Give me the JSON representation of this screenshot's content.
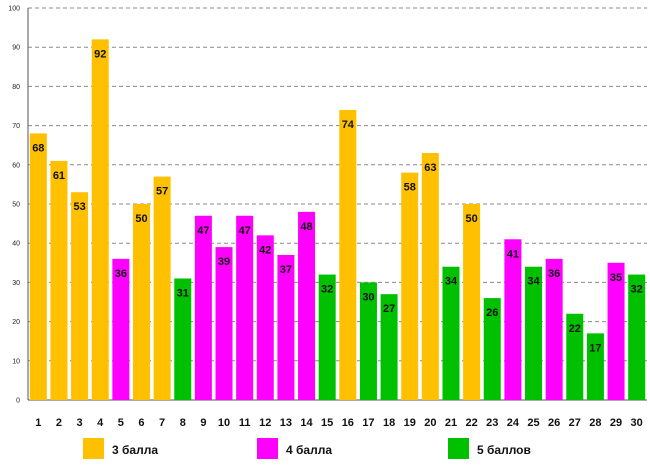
{
  "chart_data": {
    "type": "bar",
    "title": "",
    "xlabel": "",
    "ylabel": "",
    "ylim": [
      0,
      100
    ],
    "ytick_step": 10,
    "grid": "horizontal dashed",
    "legend_position": "bottom",
    "categories": [
      "1",
      "2",
      "3",
      "4",
      "5",
      "6",
      "7",
      "8",
      "9",
      "10",
      "11",
      "12",
      "13",
      "14",
      "15",
      "16",
      "17",
      "18",
      "19",
      "20",
      "21",
      "22",
      "23",
      "24",
      "25",
      "26",
      "27",
      "28",
      "29",
      "30"
    ],
    "values": [
      68,
      61,
      53,
      92,
      36,
      50,
      57,
      31,
      47,
      39,
      47,
      42,
      37,
      48,
      32,
      74,
      30,
      27,
      58,
      63,
      34,
      50,
      26,
      41,
      34,
      36,
      22,
      17,
      35,
      32
    ],
    "groups": [
      "g3",
      "g3",
      "g3",
      "g3",
      "g4",
      "g3",
      "g3",
      "g5",
      "g4",
      "g4",
      "g4",
      "g4",
      "g4",
      "g4",
      "g5",
      "g3",
      "g5",
      "g5",
      "g3",
      "g3",
      "g5",
      "g3",
      "g5",
      "g4",
      "g5",
      "g4",
      "g5",
      "g5",
      "g4",
      "g5"
    ],
    "series": [
      {
        "key": "g3",
        "name": "3 балла",
        "color": "#FFC000"
      },
      {
        "key": "g4",
        "name": "4 балла",
        "color": "#FF00FF"
      },
      {
        "key": "g5",
        "name": "5 баллов",
        "color": "#00C000"
      }
    ]
  }
}
